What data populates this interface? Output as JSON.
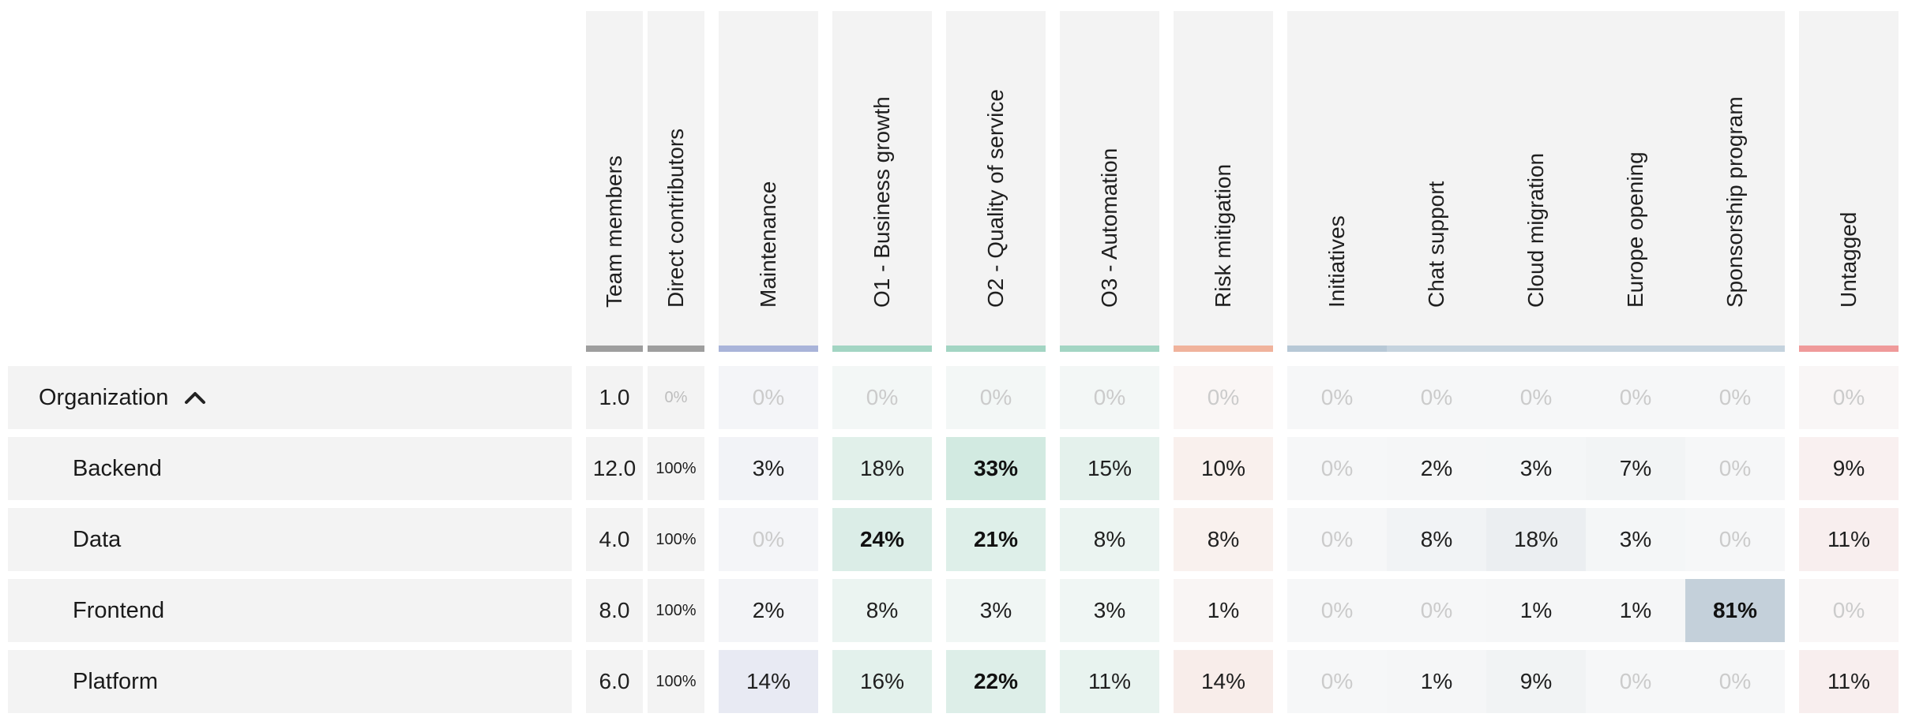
{
  "columns": [
    {
      "key": "team_members",
      "label": "Team members",
      "bar": "#9e9e9e"
    },
    {
      "key": "direct",
      "label": "Direct contributors",
      "bar": "#9e9e9e"
    },
    {
      "key": "maintenance",
      "label": "Maintenance",
      "bar": "#a9b4d9"
    },
    {
      "key": "o1",
      "label": "O1 - Business growth",
      "bar": "#a3d5c3"
    },
    {
      "key": "o2",
      "label": "O2 - Quality of service",
      "bar": "#a3d5c3"
    },
    {
      "key": "o3",
      "label": "O3 - Automation",
      "bar": "#a3d5c3"
    },
    {
      "key": "risk",
      "label": "Risk mitigation",
      "bar": "#f0b39c"
    },
    {
      "key": "initiatives",
      "label": "Initiatives",
      "bar": "#b7c8d6"
    },
    {
      "key": "chat",
      "label": "Chat support",
      "bar": "#c5d3de"
    },
    {
      "key": "cloud",
      "label": "Cloud migration",
      "bar": "#c5d3de"
    },
    {
      "key": "europe",
      "label": "Europe opening",
      "bar": "#c5d3de"
    },
    {
      "key": "sponsorship",
      "label": "Sponsorship program",
      "bar": "#c5d3de"
    },
    {
      "key": "untagged",
      "label": "Untagged",
      "bar": "#ef9a9a"
    }
  ],
  "rows": [
    {
      "name": "Organization",
      "expanded": true,
      "cells": [
        "1.0",
        "0%",
        "0%",
        "0%",
        "0%",
        "0%",
        "0%",
        "0%",
        "0%",
        "0%",
        "0%",
        "0%",
        "0%"
      ]
    },
    {
      "name": "Backend",
      "cells": [
        "12.0",
        "100%",
        "3%",
        "18%",
        "33%",
        "15%",
        "10%",
        "0%",
        "2%",
        "3%",
        "7%",
        "0%",
        "9%"
      ]
    },
    {
      "name": "Data",
      "cells": [
        "4.0",
        "100%",
        "0%",
        "24%",
        "21%",
        "8%",
        "8%",
        "0%",
        "8%",
        "18%",
        "3%",
        "0%",
        "11%"
      ]
    },
    {
      "name": "Frontend",
      "cells": [
        "8.0",
        "100%",
        "2%",
        "8%",
        "3%",
        "3%",
        "1%",
        "0%",
        "0%",
        "1%",
        "1%",
        "81%",
        "0%"
      ]
    },
    {
      "name": "Platform",
      "cells": [
        "6.0",
        "100%",
        "14%",
        "16%",
        "22%",
        "11%",
        "14%",
        "0%",
        "1%",
        "9%",
        "0%",
        "0%",
        "11%"
      ]
    }
  ],
  "colors": {
    "header_bg": "#f3f3f3",
    "maintenance": "#5c6fbf",
    "objectives": "#3fae86",
    "risk": "#ec8a68",
    "initiatives": "#8aa3b8",
    "untagged": "#e97f7f"
  },
  "icons": {
    "collapse": "chevron-up-icon"
  }
}
